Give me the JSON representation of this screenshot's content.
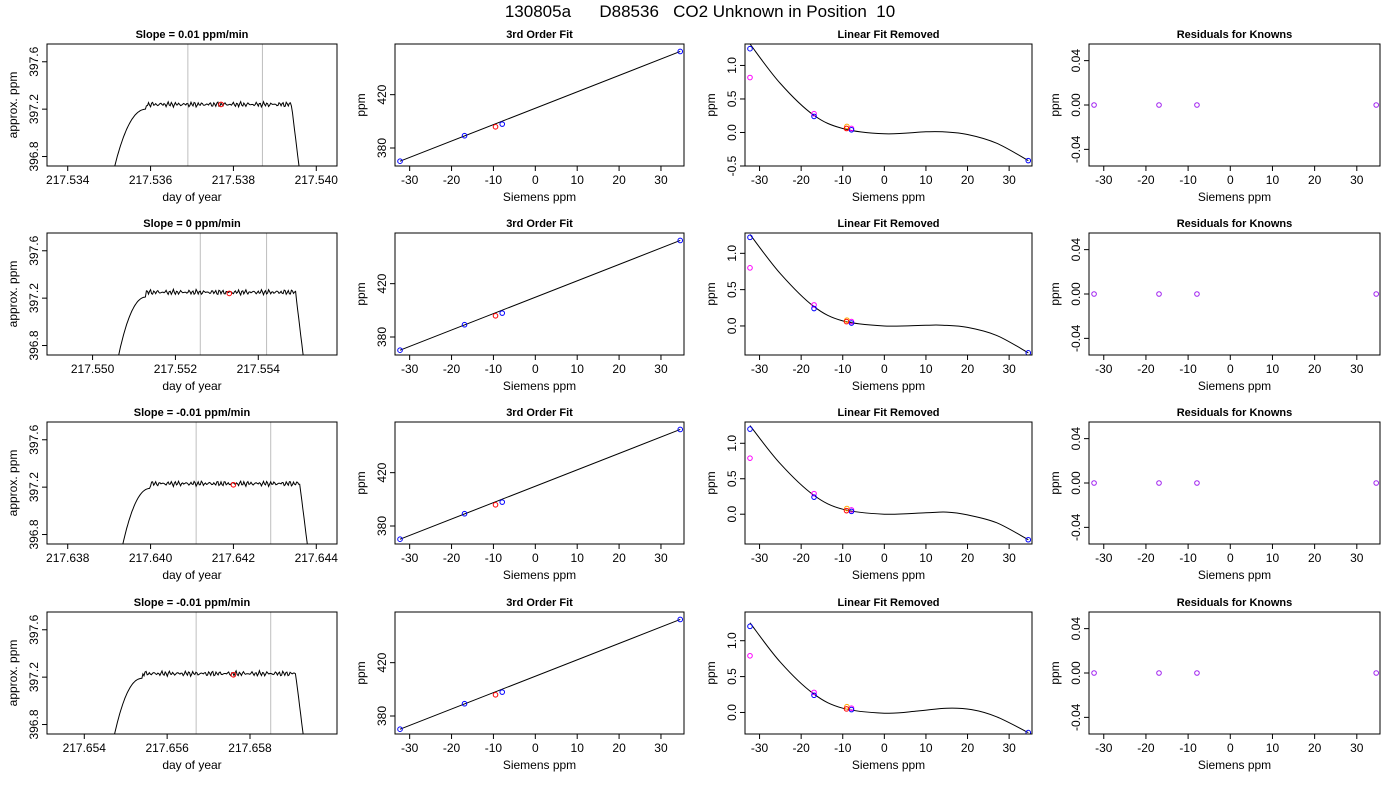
{
  "page": {
    "title": "130805a      D88536   CO2 Unknown in Position  10"
  },
  "colors": {
    "trace": "#000000",
    "vertical_marker": "#bebebe",
    "marker_red": "#ff0000",
    "marker_blue": "#0000ff",
    "marker_magenta": "#ff00ff",
    "marker_orange": "#ffa500",
    "residual_marker": "#a020f0"
  },
  "chart_data": [
    {
      "type": "line",
      "panel": "time",
      "row": 1,
      "title": "Slope =  0.01  ppm/min",
      "xlabel": "day of year",
      "ylabel": "approx. ppm",
      "xlim": [
        217.5335,
        217.5405
      ],
      "ylim": [
        396.72,
        397.75
      ],
      "xticks": [
        "217.534",
        "217.536",
        "217.538",
        "217.540"
      ],
      "yticks": [
        "396.8",
        "397.2",
        "397.6"
      ],
      "trace_start": 217.5351,
      "trace_end": 217.5396,
      "plateau_start": 217.5359,
      "plateau_end": 217.5394,
      "plateau_level": 397.24,
      "vlines": [
        217.5369,
        217.5387
      ],
      "marker": {
        "x": 217.5377,
        "y": 397.24
      }
    },
    {
      "type": "scatter",
      "panel": "fit",
      "row": 1,
      "title": "3rd Order Fit",
      "xlabel": "Siemens ppm",
      "ylabel": "ppm",
      "xlim": [
        -33.5,
        35.5
      ],
      "ylim": [
        366.5,
        458
      ],
      "xticks": [
        "-30",
        "-20",
        "-10",
        "0",
        "10",
        "20",
        "30"
      ],
      "yticks": [
        "380",
        "420"
      ],
      "knowns": [
        {
          "x": -32.3,
          "y": 370.1
        },
        {
          "x": -16.9,
          "y": 389.2
        },
        {
          "x": -7.9,
          "y": 397.9
        },
        {
          "x": 34.6,
          "y": 452.4
        }
      ],
      "unknown": {
        "x": -9.5,
        "y": 395.9
      },
      "line": [
        {
          "x": -32.3,
          "y": 370.1
        },
        {
          "x": 34.6,
          "y": 452.4
        }
      ]
    },
    {
      "type": "scatter",
      "panel": "linear",
      "row": 1,
      "title": "Linear Fit Removed",
      "xlabel": "Siemens ppm",
      "ylabel": "ppm",
      "xlim": [
        -33.5,
        35.5
      ],
      "ylim": [
        -0.5,
        1.32
      ],
      "xticks": [
        "-30",
        "-20",
        "-10",
        "0",
        "10",
        "20",
        "30"
      ],
      "yticks": [
        "-0.5",
        "0.0",
        "0.5",
        "1.0"
      ],
      "knowns": [
        {
          "x": -32.3,
          "y": 1.25
        },
        {
          "x": -16.9,
          "y": 0.24
        },
        {
          "x": -7.9,
          "y": 0.04
        },
        {
          "x": 34.6,
          "y": -0.42
        }
      ],
      "secondary": [
        {
          "x": -32.3,
          "y": 0.82
        },
        {
          "x": -16.9,
          "y": 0.28
        },
        {
          "x": -7.9,
          "y": 0.06
        }
      ],
      "unknown": {
        "x": -9.1,
        "y": 0.06
      },
      "unknown2": {
        "x": -9.0,
        "y": 0.09
      },
      "curve": [
        {
          "x": -32.3,
          "y": 1.32
        },
        {
          "x": -25,
          "y": 0.73
        },
        {
          "x": -17,
          "y": 0.26
        },
        {
          "x": -10,
          "y": 0.06
        },
        {
          "x": 0,
          "y": -0.02
        },
        {
          "x": 10,
          "y": 0.01
        },
        {
          "x": 14,
          "y": 0.01
        },
        {
          "x": 20,
          "y": -0.03
        },
        {
          "x": 27,
          "y": -0.16
        },
        {
          "x": 34.6,
          "y": -0.42
        }
      ]
    },
    {
      "type": "scatter",
      "panel": "residual",
      "row": 1,
      "title": "Residuals for Knowns",
      "xlabel": "Siemens ppm",
      "ylabel": "ppm",
      "xlim": [
        -33.5,
        35.5
      ],
      "ylim": [
        -0.055,
        0.055
      ],
      "xticks": [
        "-30",
        "-20",
        "-10",
        "0",
        "10",
        "20",
        "30"
      ],
      "yticks": [
        "-0.04",
        "0.00",
        "0.04"
      ],
      "points": [
        {
          "x": -32.3,
          "y": 0
        },
        {
          "x": -16.9,
          "y": 0
        },
        {
          "x": -7.9,
          "y": 0
        },
        {
          "x": 34.6,
          "y": 0
        }
      ]
    },
    {
      "type": "line",
      "panel": "time",
      "row": 2,
      "title": "Slope =  0  ppm/min",
      "xlabel": "day of year",
      "ylabel": "approx. ppm",
      "xlim": [
        217.5489,
        217.5559
      ],
      "ylim": [
        396.72,
        397.75
      ],
      "xticks": [
        "217.550",
        "217.552",
        "217.554"
      ],
      "yticks": [
        "396.8",
        "397.2",
        "397.6"
      ],
      "trace_start": 217.5506,
      "trace_end": 217.5551,
      "plateau_start": 217.5513,
      "plateau_end": 217.5549,
      "plateau_level": 397.25,
      "vlines": [
        217.5526,
        217.5542
      ],
      "marker": {
        "x": 217.5533,
        "y": 397.24
      }
    },
    {
      "type": "scatter",
      "panel": "fit",
      "row": 2,
      "title": "3rd Order Fit",
      "xlabel": "Siemens ppm",
      "ylabel": "ppm",
      "xlim": [
        -33.5,
        35.5
      ],
      "ylim": [
        366.5,
        458
      ],
      "xticks": [
        "-30",
        "-20",
        "-10",
        "0",
        "10",
        "20",
        "30"
      ],
      "yticks": [
        "380",
        "420"
      ],
      "knowns": [
        {
          "x": -32.3,
          "y": 370.1
        },
        {
          "x": -16.9,
          "y": 389.2
        },
        {
          "x": -7.9,
          "y": 397.9
        },
        {
          "x": 34.6,
          "y": 452.4
        }
      ],
      "unknown": {
        "x": -9.5,
        "y": 395.9
      },
      "line": [
        {
          "x": -32.3,
          "y": 370.1
        },
        {
          "x": 34.6,
          "y": 452.4
        }
      ]
    },
    {
      "type": "scatter",
      "panel": "linear",
      "row": 2,
      "title": "Linear Fit Removed",
      "xlabel": "Siemens ppm",
      "ylabel": "ppm",
      "xlim": [
        -33.5,
        35.5
      ],
      "ylim": [
        -0.4,
        1.28
      ],
      "xticks": [
        "-30",
        "-20",
        "-10",
        "0",
        "10",
        "20",
        "30"
      ],
      "yticks": [
        "0.0",
        "0.5",
        "1.0"
      ],
      "knowns": [
        {
          "x": -32.3,
          "y": 1.22
        },
        {
          "x": -16.9,
          "y": 0.24
        },
        {
          "x": -7.9,
          "y": 0.04
        },
        {
          "x": 34.6,
          "y": -0.37
        }
      ],
      "secondary": [
        {
          "x": -32.3,
          "y": 0.8
        },
        {
          "x": -16.9,
          "y": 0.29
        },
        {
          "x": -7.9,
          "y": 0.06
        }
      ],
      "unknown": {
        "x": -9.1,
        "y": 0.06
      },
      "unknown2": {
        "x": -9.0,
        "y": 0.08
      },
      "curve": [
        {
          "x": -32.3,
          "y": 1.26
        },
        {
          "x": -25,
          "y": 0.72
        },
        {
          "x": -17,
          "y": 0.27
        },
        {
          "x": -10,
          "y": 0.07
        },
        {
          "x": 0,
          "y": 0.0
        },
        {
          "x": 10,
          "y": 0.01
        },
        {
          "x": 14,
          "y": 0.01
        },
        {
          "x": 20,
          "y": -0.02
        },
        {
          "x": 27,
          "y": -0.13
        },
        {
          "x": 34.6,
          "y": -0.37
        }
      ]
    },
    {
      "type": "scatter",
      "panel": "residual",
      "row": 2,
      "title": "Residuals for Knowns",
      "xlabel": "Siemens ppm",
      "ylabel": "ppm",
      "xlim": [
        -33.5,
        35.5
      ],
      "ylim": [
        -0.055,
        0.055
      ],
      "xticks": [
        "-30",
        "-20",
        "-10",
        "0",
        "10",
        "20",
        "30"
      ],
      "yticks": [
        "-0.04",
        "0.00",
        "0.04"
      ],
      "points": [
        {
          "x": -32.3,
          "y": 0
        },
        {
          "x": -16.9,
          "y": 0
        },
        {
          "x": -7.9,
          "y": 0
        },
        {
          "x": 34.6,
          "y": 0
        }
      ]
    },
    {
      "type": "line",
      "panel": "time",
      "row": 3,
      "title": "Slope =  -0.01  ppm/min",
      "xlabel": "day of year",
      "ylabel": "approx. ppm",
      "xlim": [
        217.6375,
        217.6445
      ],
      "ylim": [
        396.72,
        397.75
      ],
      "xticks": [
        "217.638",
        "217.640",
        "217.642",
        "217.644"
      ],
      "yticks": [
        "396.8",
        "397.2",
        "397.6"
      ],
      "trace_start": 217.6393,
      "trace_end": 217.6438,
      "plateau_start": 217.64,
      "plateau_end": 217.6436,
      "plateau_level": 397.23,
      "vlines": [
        217.6411,
        217.6429
      ],
      "marker": {
        "x": 217.642,
        "y": 397.22
      }
    },
    {
      "type": "scatter",
      "panel": "fit",
      "row": 3,
      "title": "3rd Order Fit",
      "xlabel": "Siemens ppm",
      "ylabel": "ppm",
      "xlim": [
        -33.5,
        35.5
      ],
      "ylim": [
        366.5,
        458
      ],
      "xticks": [
        "-30",
        "-20",
        "-10",
        "0",
        "10",
        "20",
        "30"
      ],
      "yticks": [
        "380",
        "420"
      ],
      "knowns": [
        {
          "x": -32.3,
          "y": 370.1
        },
        {
          "x": -16.9,
          "y": 389.2
        },
        {
          "x": -7.9,
          "y": 397.9
        },
        {
          "x": 34.6,
          "y": 452.4
        }
      ],
      "unknown": {
        "x": -9.5,
        "y": 395.9
      },
      "line": [
        {
          "x": -32.3,
          "y": 370.1
        },
        {
          "x": 34.6,
          "y": 452.4
        }
      ]
    },
    {
      "type": "scatter",
      "panel": "linear",
      "row": 3,
      "title": "Linear Fit Removed",
      "xlabel": "Siemens ppm",
      "ylabel": "ppm",
      "xlim": [
        -33.5,
        35.5
      ],
      "ylim": [
        -0.42,
        1.3
      ],
      "xticks": [
        "-30",
        "-20",
        "-10",
        "0",
        "10",
        "20",
        "30"
      ],
      "yticks": [
        "0.0",
        "0.5",
        "1.0"
      ],
      "knowns": [
        {
          "x": -32.3,
          "y": 1.2
        },
        {
          "x": -16.9,
          "y": 0.24
        },
        {
          "x": -7.9,
          "y": 0.04
        },
        {
          "x": 34.6,
          "y": -0.36
        }
      ],
      "secondary": [
        {
          "x": -32.3,
          "y": 0.79
        },
        {
          "x": -16.9,
          "y": 0.29
        },
        {
          "x": -7.9,
          "y": 0.06
        }
      ],
      "unknown": {
        "x": -9.1,
        "y": 0.05
      },
      "unknown2": {
        "x": -9.0,
        "y": 0.08
      },
      "curve": [
        {
          "x": -32.3,
          "y": 1.25
        },
        {
          "x": -25,
          "y": 0.71
        },
        {
          "x": -17,
          "y": 0.27
        },
        {
          "x": -10,
          "y": 0.07
        },
        {
          "x": 0,
          "y": 0.0
        },
        {
          "x": 10,
          "y": 0.02
        },
        {
          "x": 15,
          "y": 0.03
        },
        {
          "x": 20,
          "y": -0.01
        },
        {
          "x": 27,
          "y": -0.12
        },
        {
          "x": 34.6,
          "y": -0.36
        }
      ]
    },
    {
      "type": "scatter",
      "panel": "residual",
      "row": 3,
      "title": "Residuals for Knowns",
      "xlabel": "Siemens ppm",
      "ylabel": "ppm",
      "xlim": [
        -33.5,
        35.5
      ],
      "ylim": [
        -0.055,
        0.055
      ],
      "xticks": [
        "-30",
        "-20",
        "-10",
        "0",
        "10",
        "20",
        "30"
      ],
      "yticks": [
        "-0.04",
        "0.00",
        "0.04"
      ],
      "points": [
        {
          "x": -32.3,
          "y": 0
        },
        {
          "x": -16.9,
          "y": 0
        },
        {
          "x": -7.9,
          "y": 0
        },
        {
          "x": 34.6,
          "y": 0
        }
      ]
    },
    {
      "type": "line",
      "panel": "time",
      "row": 4,
      "title": "Slope =  -0.01  ppm/min",
      "xlabel": "day of year",
      "ylabel": "approx. ppm",
      "xlim": [
        217.6531,
        217.6601
      ],
      "ylim": [
        396.72,
        397.75
      ],
      "xticks": [
        "217.654",
        "217.656",
        "217.658"
      ],
      "yticks": [
        "396.8",
        "397.2",
        "397.6"
      ],
      "trace_start": 217.6547,
      "trace_end": 217.6593,
      "plateau_start": 217.6554,
      "plateau_end": 217.6591,
      "plateau_level": 397.23,
      "vlines": [
        217.6567,
        217.6585
      ],
      "marker": {
        "x": 217.6576,
        "y": 397.22
      }
    },
    {
      "type": "scatter",
      "panel": "fit",
      "row": 4,
      "title": "3rd Order Fit",
      "xlabel": "Siemens ppm",
      "ylabel": "ppm",
      "xlim": [
        -33.5,
        35.5
      ],
      "ylim": [
        366.5,
        458
      ],
      "xticks": [
        "-30",
        "-20",
        "-10",
        "0",
        "10",
        "20",
        "30"
      ],
      "yticks": [
        "380",
        "420"
      ],
      "knowns": [
        {
          "x": -32.3,
          "y": 370.1
        },
        {
          "x": -16.9,
          "y": 389.2
        },
        {
          "x": -7.9,
          "y": 397.9
        },
        {
          "x": 34.6,
          "y": 452.4
        }
      ],
      "unknown": {
        "x": -9.5,
        "y": 395.9
      },
      "line": [
        {
          "x": -32.3,
          "y": 370.1
        },
        {
          "x": 34.6,
          "y": 452.4
        }
      ]
    },
    {
      "type": "scatter",
      "panel": "linear",
      "row": 4,
      "title": "Linear Fit Removed",
      "xlabel": "Siemens ppm",
      "ylabel": "ppm",
      "xlim": [
        -33.5,
        35.5
      ],
      "ylim": [
        -0.3,
        1.4
      ],
      "xticks": [
        "-30",
        "-20",
        "-10",
        "0",
        "10",
        "20",
        "30"
      ],
      "yticks": [
        "0.0",
        "0.5",
        "1.0"
      ],
      "knowns": [
        {
          "x": -32.3,
          "y": 1.2
        },
        {
          "x": -16.9,
          "y": 0.24
        },
        {
          "x": -7.9,
          "y": 0.04
        },
        {
          "x": 34.6,
          "y": -0.28
        }
      ],
      "secondary": [
        {
          "x": -32.3,
          "y": 0.79
        },
        {
          "x": -16.9,
          "y": 0.28
        },
        {
          "x": -7.9,
          "y": 0.06
        }
      ],
      "unknown": {
        "x": -9.1,
        "y": 0.05
      },
      "unknown2": {
        "x": -9.0,
        "y": 0.08
      },
      "curve": [
        {
          "x": -32.3,
          "y": 1.25
        },
        {
          "x": -25,
          "y": 0.7
        },
        {
          "x": -17,
          "y": 0.26
        },
        {
          "x": -10,
          "y": 0.06
        },
        {
          "x": 0,
          "y": -0.01
        },
        {
          "x": 8,
          "y": 0.02
        },
        {
          "x": 15,
          "y": 0.06
        },
        {
          "x": 21,
          "y": 0.04
        },
        {
          "x": 27,
          "y": -0.06
        },
        {
          "x": 34.6,
          "y": -0.28
        }
      ]
    },
    {
      "type": "scatter",
      "panel": "residual",
      "row": 4,
      "title": "Residuals for Knowns",
      "xlabel": "Siemens ppm",
      "ylabel": "ppm",
      "xlim": [
        -33.5,
        35.5
      ],
      "ylim": [
        -0.055,
        0.055
      ],
      "xticks": [
        "-30",
        "-20",
        "-10",
        "0",
        "10",
        "20",
        "30"
      ],
      "yticks": [
        "-0.04",
        "0.00",
        "0.04"
      ],
      "points": [
        {
          "x": -32.3,
          "y": 0
        },
        {
          "x": -16.9,
          "y": 0
        },
        {
          "x": -7.9,
          "y": 0
        },
        {
          "x": 34.6,
          "y": 0
        }
      ]
    }
  ]
}
